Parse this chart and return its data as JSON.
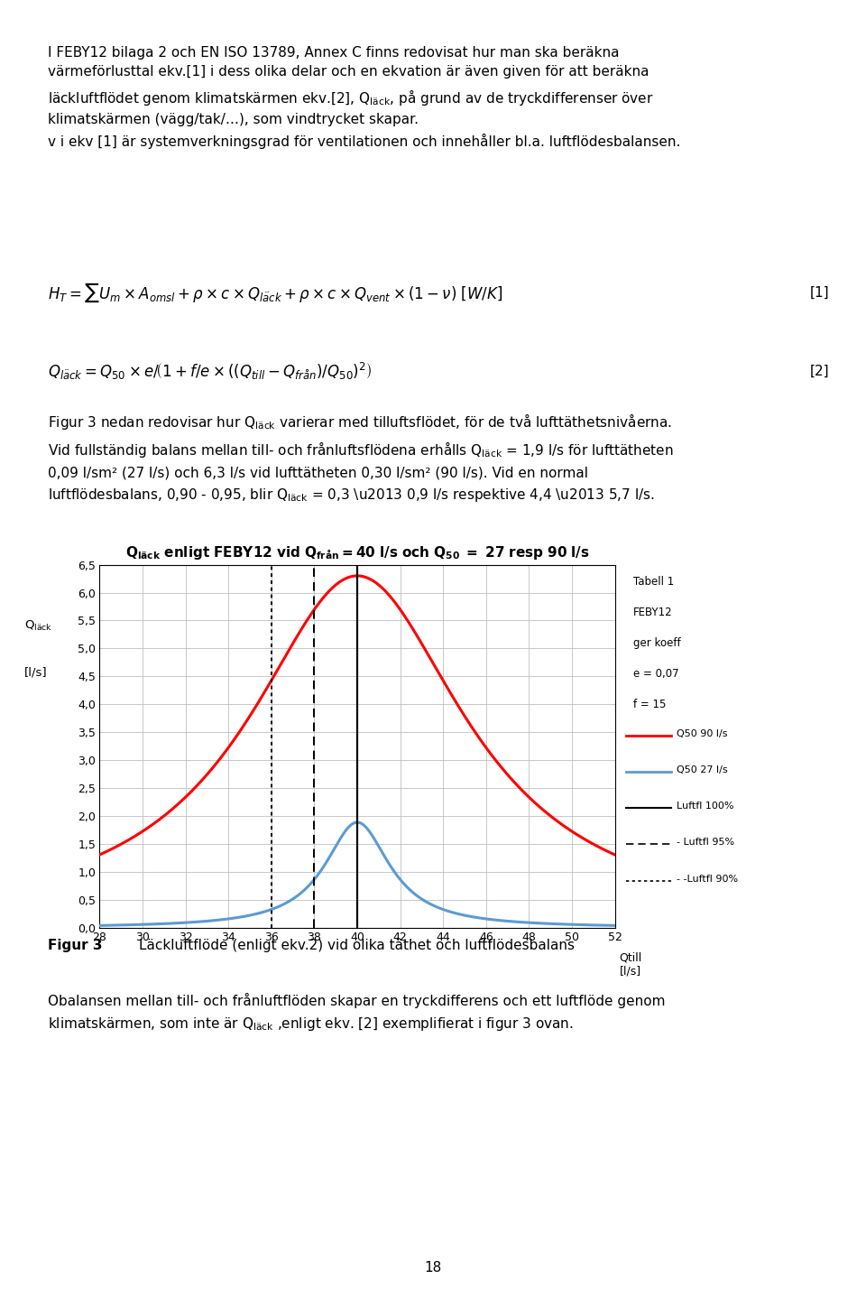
{
  "x_min": 28,
  "x_max": 52,
  "y_min": 0.0,
  "y_max": 6.5,
  "yticks": [
    0.0,
    0.5,
    1.0,
    1.5,
    2.0,
    2.5,
    3.0,
    3.5,
    4.0,
    4.5,
    5.0,
    5.5,
    6.0,
    6.5
  ],
  "xticks": [
    28,
    30,
    32,
    34,
    36,
    38,
    40,
    42,
    44,
    46,
    48,
    50,
    52
  ],
  "Q_from": 40,
  "Q50_90": 90,
  "Q50_27": 27,
  "e": 0.07,
  "f": 15,
  "vline_100": 40,
  "vline_95": 38,
  "vline_90": 36,
  "red_color": "#FF0000",
  "blue_color": "#5B9BD5",
  "grid_color": "#BFBFBF",
  "background_color": "#FFFFFF",
  "figur3_label": "Figur 3",
  "figur3_caption": "Läckluftflöde (enligt ekv.2) vid olika täthet och luftflödesbalans",
  "page_number": "18",
  "tabell_text": [
    "Tabell 1",
    "FEBY12",
    "ger koeff",
    "e = 0,07",
    "f = 15"
  ],
  "font_size_body": 11,
  "font_size_tick": 9,
  "font_size_legend": 8.5
}
